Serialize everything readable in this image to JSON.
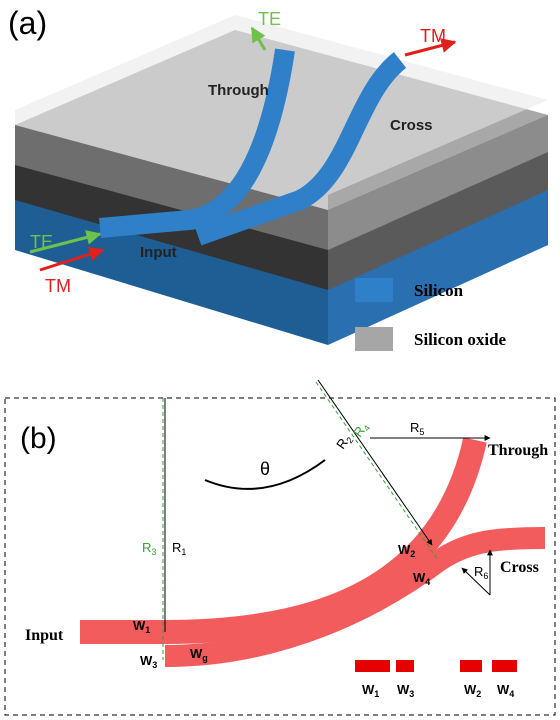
{
  "panel_a": {
    "label": "(a)",
    "polarizations": {
      "output_te": "TE",
      "output_tm": "TM",
      "input_te": "TE",
      "input_tm": "TM"
    },
    "ports": {
      "through": "Through",
      "cross": "Cross",
      "input": "Input"
    },
    "legend": [
      {
        "label": "Silicon",
        "color": "#2f80c8"
      },
      {
        "label": "Silicon oxide",
        "color": "#a6a6a6"
      }
    ]
  },
  "panel_b": {
    "label": "(b)",
    "ports": {
      "through": "Through",
      "cross": "Cross",
      "input": "Input"
    },
    "theta": "θ",
    "symbols": {
      "r1": {
        "base": "R",
        "sub": "1"
      },
      "r2": {
        "base": "R",
        "sub": "2"
      },
      "r3": {
        "base": "R",
        "sub": "3"
      },
      "r4": {
        "base": "R",
        "sub": "4"
      },
      "r5": {
        "base": "R",
        "sub": "5"
      },
      "r6": {
        "base": "R",
        "sub": "6"
      },
      "w1": {
        "base": "W",
        "sub": "1"
      },
      "w2": {
        "base": "W",
        "sub": "2"
      },
      "w3": {
        "base": "W",
        "sub": "3"
      },
      "w4": {
        "base": "W",
        "sub": "4"
      },
      "wg": {
        "base": "W",
        "sub": "g"
      }
    },
    "width_legend": [
      {
        "base": "W",
        "sub": "1"
      },
      {
        "base": "W",
        "sub": "3"
      },
      {
        "base": "W",
        "sub": "2"
      },
      {
        "base": "W",
        "sub": "4"
      }
    ]
  }
}
